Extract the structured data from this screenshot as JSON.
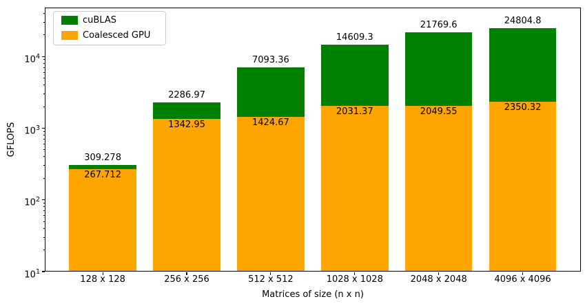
{
  "chart_data": {
    "type": "bar",
    "title": "",
    "xlabel": "Matrices of size (n x n)",
    "ylabel": "GFLOPS",
    "yscale": "log",
    "ylim": [
      10,
      49000
    ],
    "ytick_exponents": [
      1,
      2,
      3,
      4
    ],
    "grid": false,
    "legend": {
      "position": "upper left",
      "entries": [
        "cuBLAS",
        "Coalesced GPU"
      ]
    },
    "categories": [
      "128 x 128",
      "256 x 256",
      "512 x 512",
      "1028 x 1028",
      "2048 x 2048",
      "4096 x 4096"
    ],
    "series": [
      {
        "name": "cuBLAS",
        "color": "#008000",
        "values": [
          309.278,
          2286.97,
          7093.36,
          14609.3,
          21769.6,
          24804.8
        ],
        "labels": [
          "309.278",
          "2286.97",
          "7093.36",
          "14609.3",
          "21769.6",
          "24804.8"
        ],
        "label_placement": "above-bar"
      },
      {
        "name": "Coalesced GPU",
        "color": "#FFA500",
        "values": [
          267.712,
          1342.95,
          1424.67,
          2031.37,
          2049.55,
          2350.32
        ],
        "labels": [
          "267.712",
          "1342.95",
          "1424.67",
          "2031.37",
          "2049.55",
          "2350.32"
        ],
        "label_placement": "inside-bar-top"
      }
    ]
  }
}
